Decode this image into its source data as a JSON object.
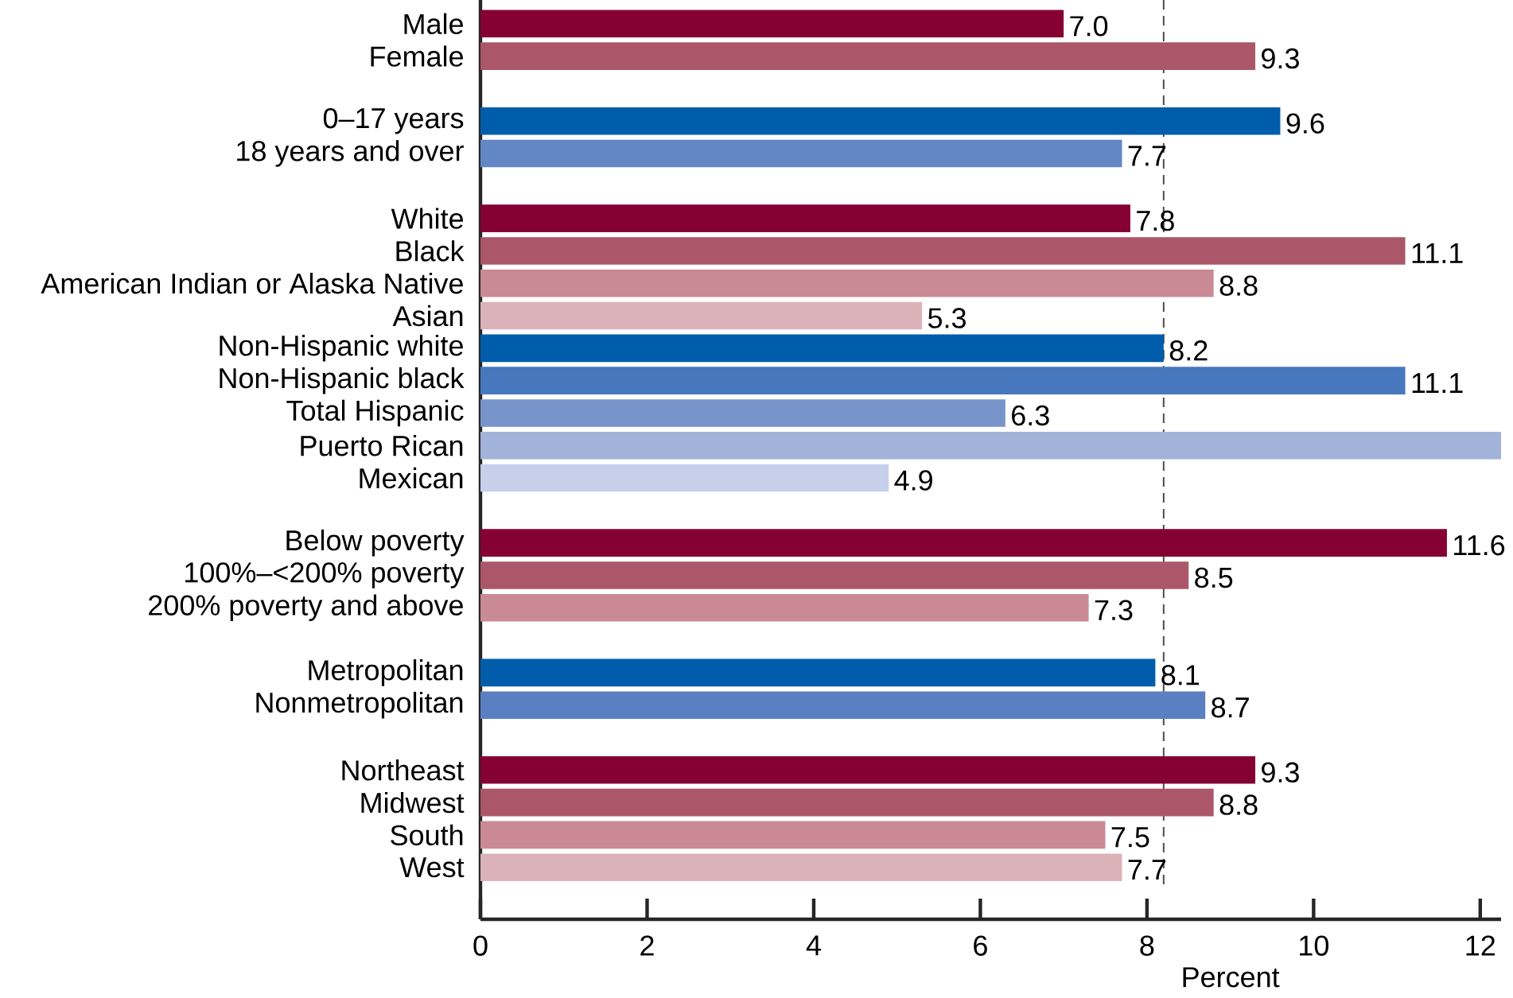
{
  "chart_data": {
    "type": "bar",
    "orientation": "horizontal",
    "xlabel": "Percent",
    "categories": [
      "Male",
      "Female",
      null,
      "0–17 years",
      "18 years and over",
      null,
      "White",
      "Black",
      "American Indian or Alaska Native",
      "Asian",
      "Non-Hispanic white",
      "Non-Hispanic black",
      "Total Hispanic",
      "Puerto Rican",
      "Mexican",
      null,
      "Below poverty",
      "100%–<200% poverty",
      "200% poverty and above",
      null,
      "Metropolitan",
      "Nonmetropolitan",
      null,
      "Northeast",
      "Midwest",
      "South",
      "West"
    ],
    "values": [
      7.0,
      9.3,
      null,
      9.6,
      7.7,
      null,
      7.8,
      11.1,
      8.8,
      5.3,
      8.2,
      11.1,
      6.3,
      12.25,
      4.9,
      null,
      11.6,
      8.5,
      7.3,
      null,
      8.1,
      8.7,
      null,
      9.3,
      8.8,
      7.5,
      7.7
    ],
    "value_labels": [
      "7.0",
      "9.3",
      null,
      "9.6",
      "7.7",
      null,
      "7.8",
      "11.1",
      "8.8",
      "5.3",
      "8.2",
      "11.1",
      "6.3",
      null,
      "4.9",
      null,
      "11.6",
      "8.5",
      "7.3",
      null,
      "8.1",
      "8.7",
      null,
      "9.3",
      "8.8",
      "7.5",
      "7.7"
    ],
    "colors": [
      "#850033",
      "#ab5769",
      null,
      "#005dab",
      "#6287c4",
      null,
      "#850033",
      "#ab5769",
      "#c98a96",
      "#dcb2b9",
      "#005dab",
      "#4778bd",
      "#7895cb",
      "#a2b3da",
      "#c6d0ea",
      null,
      "#850033",
      "#ab5769",
      "#c98a96",
      null,
      "#005dab",
      "#5a80c2",
      null,
      "#850033",
      "#ab5769",
      "#c98a96",
      "#dcb2b9"
    ],
    "xlim": [
      0,
      12.25
    ],
    "xticks": [
      0,
      2,
      4,
      6,
      8,
      10,
      12
    ],
    "ref_lines": [
      {
        "axis": "x",
        "value": 8.2,
        "color": "#4d4d4d",
        "line_style": "dashed"
      }
    ],
    "grid": false
  }
}
